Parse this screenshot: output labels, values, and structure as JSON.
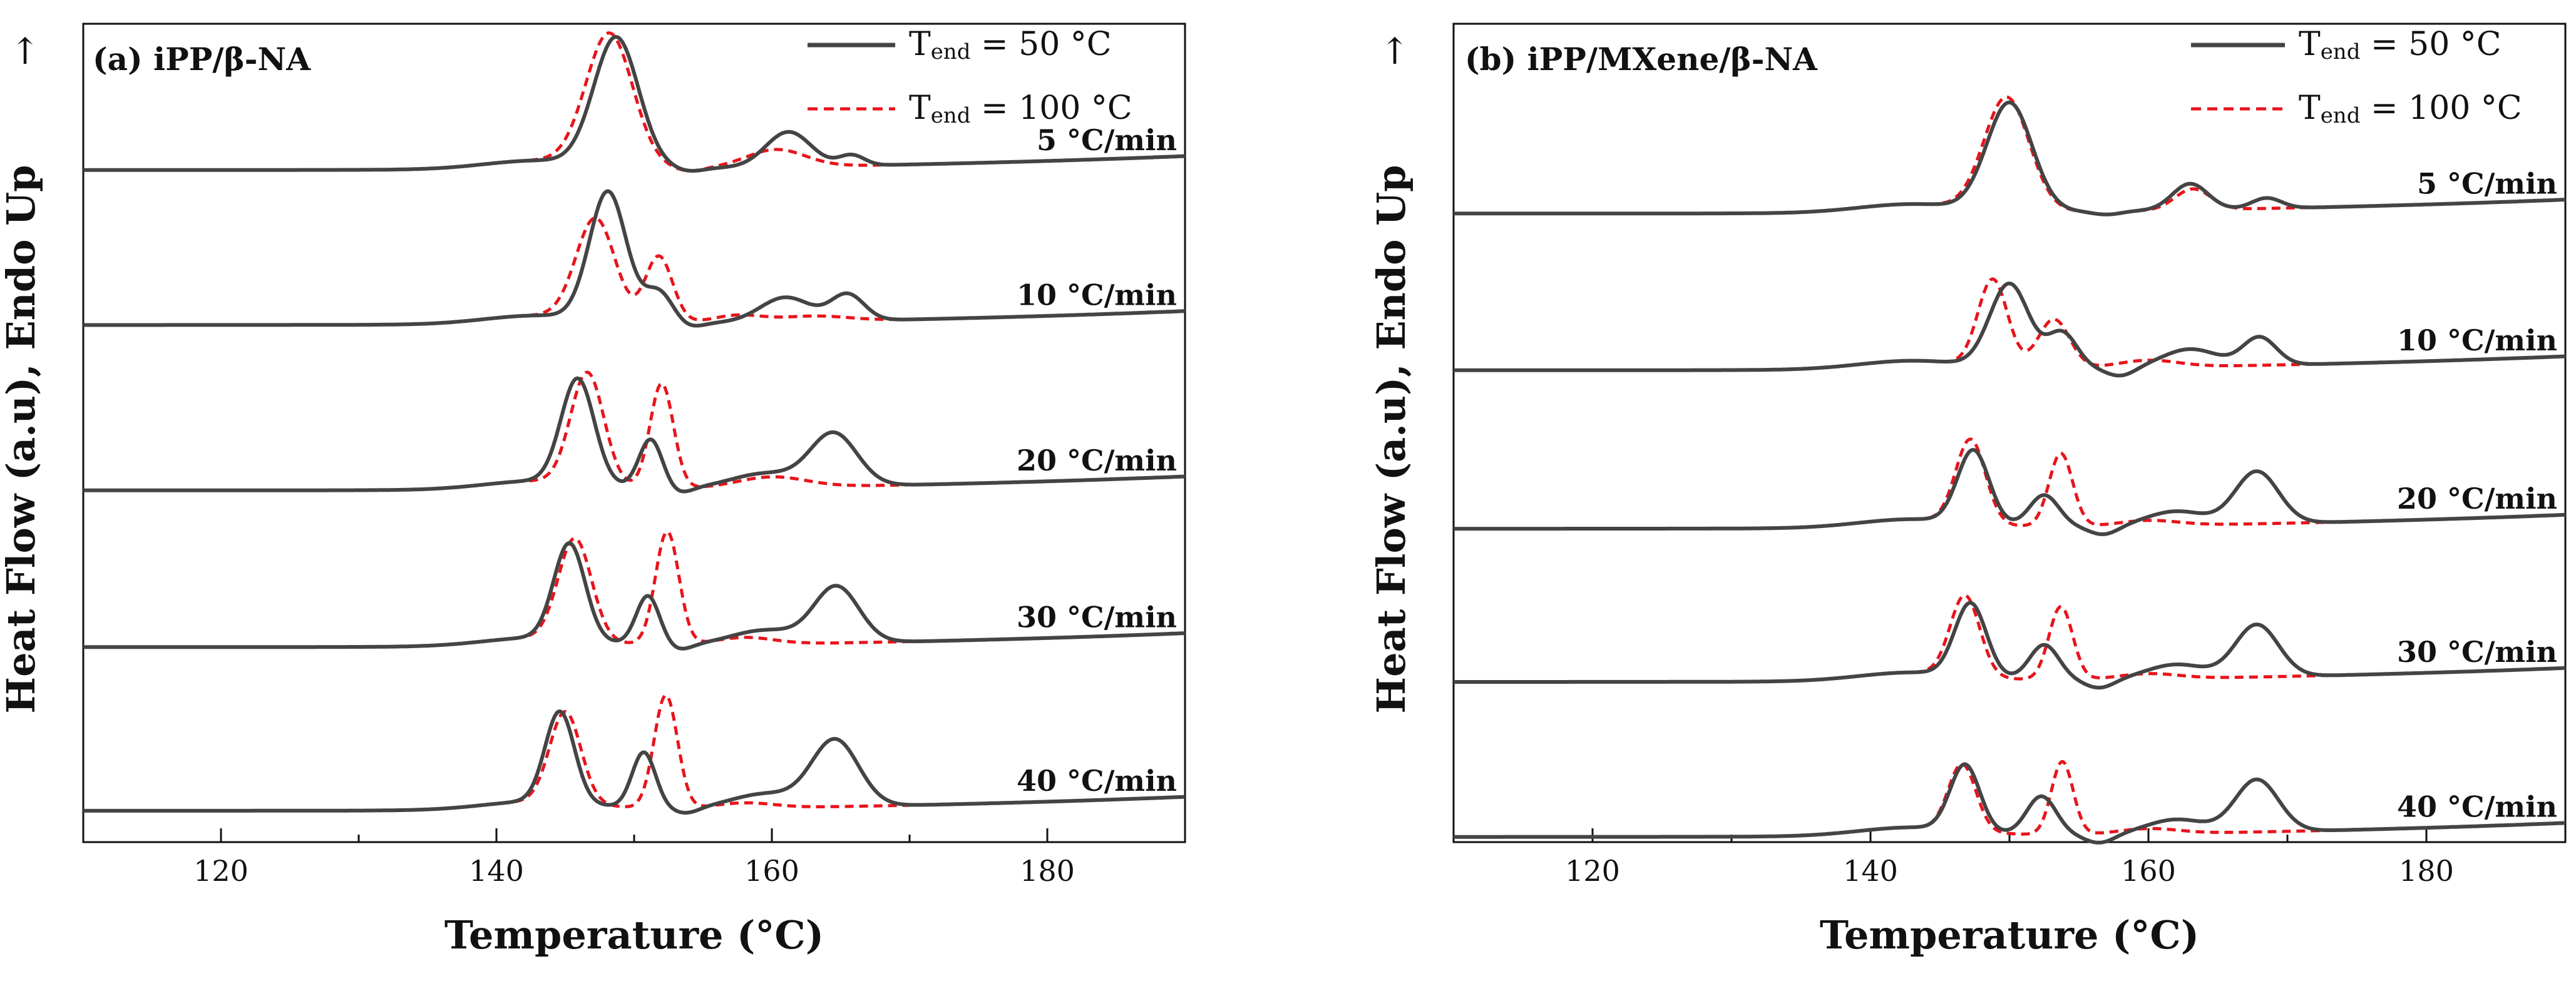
{
  "colors": {
    "solid": "#444444",
    "dashed": "#e8141b",
    "axis": "#111111",
    "background": "#ffffff"
  },
  "chart_data": [
    {
      "type": "line",
      "panel_label": "(a) iPP/β-NA",
      "xlabel": "Temperature (°C)",
      "ylabel": "Heat Flow (a.u), Endo Up",
      "up_arrow": "↑",
      "xlim": [
        110,
        190
      ],
      "x_ticks": [
        120,
        140,
        160,
        180
      ],
      "x_tick_labels": [
        "120",
        "140",
        "160",
        "180"
      ],
      "ylim": [
        -0.1,
        4.6
      ],
      "legend": {
        "position": "top-right",
        "entries": [
          {
            "series": "solid",
            "prefix": "T",
            "sub": "end",
            "rest": " = 50   °C"
          },
          {
            "series": "dashed",
            "prefix": "T",
            "sub": "end",
            "rest": " = 100 °C"
          }
        ]
      },
      "rates": [
        {
          "label": "5 °C/min",
          "baseline": 3.76,
          "solid": {
            "drift": 0.08,
            "dip": {
              "c": 154.0,
              "d": 0.02,
              "w": 1.5
            },
            "peaks": [
              [
                148.7,
                0.74,
                2.3
              ],
              [
                161.2,
                0.2,
                2.3
              ],
              [
                165.8,
                0.06,
                1.3
              ]
            ]
          },
          "dashed": {
            "drift": 0.08,
            "dip": {
              "c": 154.0,
              "d": 0.02,
              "w": 1.5
            },
            "peaks": [
              [
                148.2,
                0.76,
                2.4
              ],
              [
                160.3,
                0.1,
                3.0
              ]
            ]
          }
        },
        {
          "label": "10 °C/min",
          "baseline": 2.87,
          "solid": {
            "drift": 0.08,
            "dip": {
              "c": 153.8,
              "d": 0.03,
              "w": 1.5
            },
            "peaks": [
              [
                148.1,
                0.74,
                1.9
              ],
              [
                151.8,
                0.18,
                1.5
              ],
              [
                161.0,
                0.14,
                2.6
              ],
              [
                165.5,
                0.15,
                1.7
              ]
            ]
          },
          "dashed": {
            "drift": 0.08,
            "dip": {
              "c": 154.0,
              "d": 0.0,
              "w": 1.5
            },
            "peaks": [
              [
                147.2,
                0.58,
                2.0
              ],
              [
                151.8,
                0.38,
                1.4
              ],
              [
                157.5,
                0.04,
                2.5
              ],
              [
                163.0,
                0.03,
                3.5
              ]
            ]
          }
        },
        {
          "label": "20 °C/min",
          "baseline": 1.92,
          "solid": {
            "drift": 0.08,
            "dip": {
              "c": 153.3,
              "d": 0.03,
              "w": 1.3
            },
            "peaks": [
              [
                145.9,
                0.6,
                1.7
              ],
              [
                151.2,
                0.28,
                1.2
              ],
              [
                164.5,
                0.3,
                2.4
              ],
              [
                159.5,
                0.08,
                3.5
              ]
            ]
          },
          "dashed": {
            "drift": 0.08,
            "dip": {
              "c": 154.0,
              "d": 0.0,
              "w": 1.5
            },
            "peaks": [
              [
                146.6,
                0.64,
                1.7
              ],
              [
                152.0,
                0.6,
                1.2
              ],
              [
                160.0,
                0.06,
                3.5
              ]
            ]
          }
        },
        {
          "label": "30 °C/min",
          "baseline": 1.02,
          "solid": {
            "drift": 0.08,
            "dip": {
              "c": 153.3,
              "d": 0.03,
              "w": 1.3
            },
            "peaks": [
              [
                145.3,
                0.55,
                1.6
              ],
              [
                151.0,
                0.28,
                1.2
              ],
              [
                164.7,
                0.32,
                2.3
              ],
              [
                159.5,
                0.08,
                3.5
              ]
            ]
          },
          "dashed": {
            "drift": 0.08,
            "dip": {
              "c": 154.0,
              "d": 0.0,
              "w": 1.5
            },
            "peaks": [
              [
                145.7,
                0.58,
                1.7
              ],
              [
                152.4,
                0.65,
                1.2
              ],
              [
                158.0,
                0.04,
                3.0
              ]
            ]
          }
        },
        {
          "label": "40  °C/min",
          "baseline": 0.08,
          "solid": {
            "drift": 0.08,
            "dip": {
              "c": 153.8,
              "d": 0.03,
              "w": 1.3
            },
            "peaks": [
              [
                144.6,
                0.52,
                1.5
              ],
              [
                150.7,
                0.32,
                1.2
              ],
              [
                164.6,
                0.38,
                2.4
              ],
              [
                159.5,
                0.08,
                3.5
              ]
            ]
          },
          "dashed": {
            "drift": 0.08,
            "dip": {
              "c": 154.0,
              "d": 0.0,
              "w": 1.5
            },
            "peaks": [
              [
                145.0,
                0.52,
                1.6
              ],
              [
                152.3,
                0.65,
                1.2
              ],
              [
                158.0,
                0.03,
                3.0
              ]
            ]
          }
        }
      ]
    },
    {
      "type": "line",
      "panel_label": "(b) iPP/MXene/β-NA",
      "xlabel": "Temperature (°C)",
      "ylabel": "Heat Flow (a.u), Endo Up",
      "up_arrow": "↑",
      "xlim": [
        110,
        190
      ],
      "x_ticks": [
        120,
        140,
        160,
        180
      ],
      "x_tick_labels": [
        "120",
        "140",
        "160",
        "180"
      ],
      "ylim": [
        -0.1,
        4.6
      ],
      "legend": {
        "position": "top-right",
        "entries": [
          {
            "series": "solid",
            "prefix": "T",
            "sub": "end",
            "rest": " = 50 °C"
          },
          {
            "series": "dashed",
            "prefix": "T",
            "sub": "end",
            "rest": " = 100 °C"
          }
        ]
      },
      "rates": [
        {
          "label": "5 °C/min",
          "baseline": 3.51,
          "solid": {
            "drift": 0.08,
            "dip": {
              "c": 157.0,
              "d": 0.02,
              "w": 1.5
            },
            "peaks": [
              [
                150.0,
                0.62,
                2.3
              ],
              [
                163.0,
                0.15,
                1.8
              ],
              [
                168.5,
                0.06,
                1.5
              ]
            ]
          },
          "dashed": {
            "drift": 0.08,
            "dip": {
              "c": 157.0,
              "d": 0.02,
              "w": 1.5
            },
            "peaks": [
              [
                149.8,
                0.65,
                2.3
              ],
              [
                163.2,
                0.12,
                1.8
              ]
            ]
          }
        },
        {
          "label": "10 °C/min",
          "baseline": 2.61,
          "solid": {
            "drift": 0.08,
            "dip": {
              "c": 158.0,
              "d": 0.05,
              "w": 1.5
            },
            "peaks": [
              [
                150.0,
                0.48,
                2.0
              ],
              [
                153.8,
                0.2,
                1.5
              ],
              [
                163.0,
                0.1,
                2.8
              ],
              [
                168.0,
                0.16,
                1.7
              ]
            ]
          },
          "dashed": {
            "drift": 0.08,
            "dip": {
              "c": 157.0,
              "d": 0.0,
              "w": 1.5
            },
            "peaks": [
              [
                148.8,
                0.5,
                1.5
              ],
              [
                153.2,
                0.28,
                1.6
              ],
              [
                160.0,
                0.04,
                3.0
              ]
            ]
          }
        },
        {
          "label": "20 °C/min",
          "baseline": 1.7,
          "solid": {
            "drift": 0.08,
            "dip": {
              "c": 156.8,
              "d": 0.05,
              "w": 1.5
            },
            "peaks": [
              [
                147.4,
                0.42,
                1.6
              ],
              [
                152.5,
                0.18,
                1.5
              ],
              [
                167.8,
                0.3,
                2.2
              ],
              [
                162.0,
                0.08,
                3.0
              ]
            ]
          },
          "dashed": {
            "drift": 0.08,
            "dip": {
              "c": 157.0,
              "d": 0.0,
              "w": 1.5
            },
            "peaks": [
              [
                147.2,
                0.48,
                1.5
              ],
              [
                153.7,
                0.42,
                1.2
              ],
              [
                160.0,
                0.03,
                3.0
              ]
            ]
          }
        },
        {
          "label": "30 °C/min",
          "baseline": 0.82,
          "solid": {
            "drift": 0.08,
            "dip": {
              "c": 156.5,
              "d": 0.05,
              "w": 1.5
            },
            "peaks": [
              [
                147.2,
                0.42,
                1.6
              ],
              [
                152.5,
                0.2,
                1.5
              ],
              [
                167.8,
                0.3,
                2.2
              ],
              [
                162.0,
                0.08,
                3.0
              ]
            ]
          },
          "dashed": {
            "drift": 0.08,
            "dip": {
              "c": 157.0,
              "d": 0.0,
              "w": 1.5
            },
            "peaks": [
              [
                146.8,
                0.46,
                1.5
              ],
              [
                153.7,
                0.42,
                1.2
              ],
              [
                160.0,
                0.03,
                3.0
              ]
            ]
          }
        },
        {
          "label": "40  °C/min",
          "baseline": -0.07,
          "solid": {
            "drift": 0.08,
            "dip": {
              "c": 156.5,
              "d": 0.05,
              "w": 1.5
            },
            "peaks": [
              [
                146.8,
                0.38,
                1.5
              ],
              [
                152.3,
                0.22,
                1.5
              ],
              [
                167.8,
                0.3,
                2.2
              ],
              [
                162.0,
                0.08,
                3.0
              ]
            ]
          },
          "dashed": {
            "drift": 0.08,
            "dip": {
              "c": 157.0,
              "d": 0.0,
              "w": 1.5
            },
            "peaks": [
              [
                146.6,
                0.38,
                1.4
              ],
              [
                153.8,
                0.42,
                1.1
              ],
              [
                160.0,
                0.03,
                3.0
              ]
            ]
          }
        }
      ]
    }
  ]
}
